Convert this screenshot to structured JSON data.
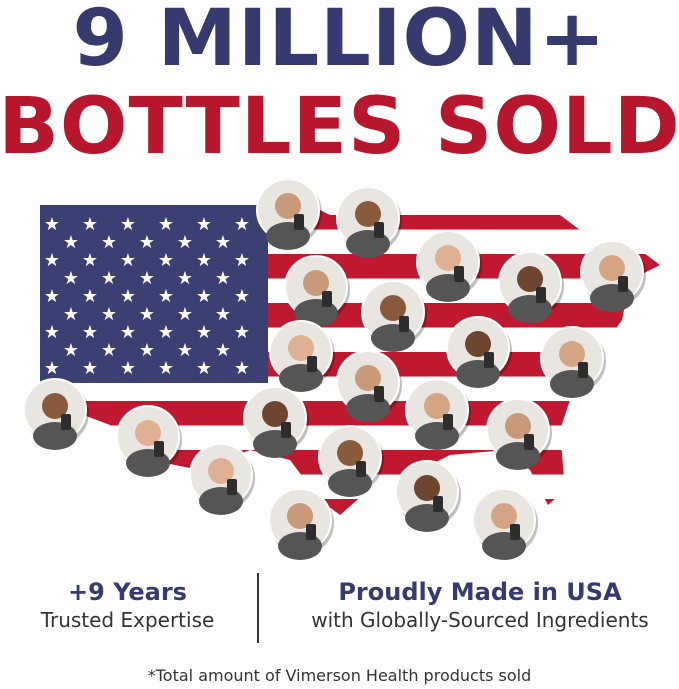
{
  "headline": {
    "line1": "9 MILLION+",
    "line2": "BOTTLES SOLD"
  },
  "colors": {
    "navy": "#363a6f",
    "red": "#b8162c",
    "flag_red": "#c0182f",
    "flag_blue": "#3b3f72"
  },
  "map": {
    "image": "us-map-flag-with-customer-photos",
    "photo_count": 23
  },
  "stats": [
    {
      "title": "+9 Years",
      "subtitle": "Trusted Expertise"
    },
    {
      "title": "Proudly Made in USA",
      "subtitle": "with Globally-Sourced Ingredients"
    }
  ],
  "footnote": "*Total amount of Vimerson Health products sold"
}
